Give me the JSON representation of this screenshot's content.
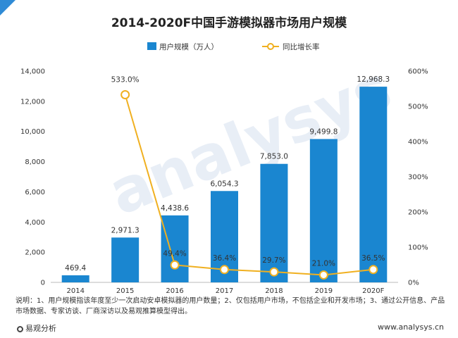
{
  "chart_data": {
    "type": "bar+line",
    "title": "2014-2020F中国手游模拟器市场用户规模",
    "categories": [
      "2014",
      "2015",
      "2016",
      "2017",
      "2018",
      "2019",
      "2020F"
    ],
    "series": [
      {
        "name": "用户规模（万人）",
        "type": "bar",
        "axis": "left",
        "color": "#1a86d0",
        "values": [
          469.4,
          2971.3,
          4438.6,
          6054.3,
          7853.0,
          9499.8,
          12968.3
        ],
        "labels": [
          "469.4",
          "2,971.3",
          "4,438.6",
          "6,054.3",
          "7,853.0",
          "9,499.8",
          "12,968.3"
        ]
      },
      {
        "name": "同比增长率",
        "type": "line",
        "axis": "right",
        "color": "#f0b020",
        "values": [
          null,
          533.0,
          49.4,
          36.4,
          29.7,
          21.0,
          36.5
        ],
        "labels": [
          "",
          "533.0%",
          "49.4%",
          "36.4%",
          "29.7%",
          "21.0%",
          "36.5%"
        ]
      }
    ],
    "y_left": {
      "min": 0,
      "max": 14000,
      "ticks": [
        "0",
        "2,000",
        "4,000",
        "6,000",
        "8,000",
        "10,000",
        "12,000",
        "14,000"
      ]
    },
    "y_right": {
      "min": 0,
      "max": 600,
      "ticks": [
        "0%",
        "100%",
        "200%",
        "300%",
        "400%",
        "500%",
        "600%"
      ]
    },
    "legend_position": "top",
    "grid": false
  },
  "note": "说明：1、用户规模指该年度至少一次启动安卓模拟器的用户数量；2、仅包括用户市场，不包括企业和开发市场；3、通过公开信息、产品市场数据、专家访谈、厂商深访以及易观推算模型得出。",
  "footer": {
    "source": "易观分析",
    "website": "www.analysys.cn"
  },
  "watermark": "analysys"
}
